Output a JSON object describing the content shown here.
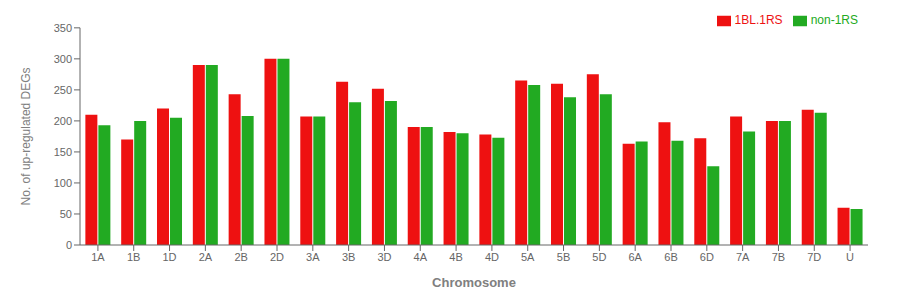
{
  "chart_data": {
    "type": "bar",
    "categories": [
      "1A",
      "1B",
      "1D",
      "2A",
      "2B",
      "2D",
      "3A",
      "3B",
      "3D",
      "4A",
      "4B",
      "4D",
      "5A",
      "5B",
      "5D",
      "6A",
      "6B",
      "6D",
      "7A",
      "7B",
      "7D",
      "U"
    ],
    "series": [
      {
        "name": "1BL.1RS",
        "color": "#ee1111",
        "values": [
          210,
          170,
          220,
          290,
          243,
          300,
          207,
          263,
          252,
          190,
          182,
          178,
          265,
          260,
          275,
          163,
          198,
          172,
          207,
          200,
          218,
          60
        ]
      },
      {
        "name": "non-1RS",
        "color": "#22aa22",
        "values": [
          193,
          200,
          205,
          290,
          208,
          300,
          207,
          230,
          232,
          190,
          180,
          173,
          258,
          238,
          243,
          167,
          168,
          127,
          183,
          200,
          213,
          58
        ]
      }
    ],
    "xlabel": "Chromosome",
    "ylabel": "No. of up-regulated DEGs",
    "ylim": [
      0,
      350
    ],
    "yticks": [
      0,
      50,
      100,
      150,
      200,
      250,
      300,
      350
    ],
    "grid": false,
    "legend": "upper right"
  }
}
